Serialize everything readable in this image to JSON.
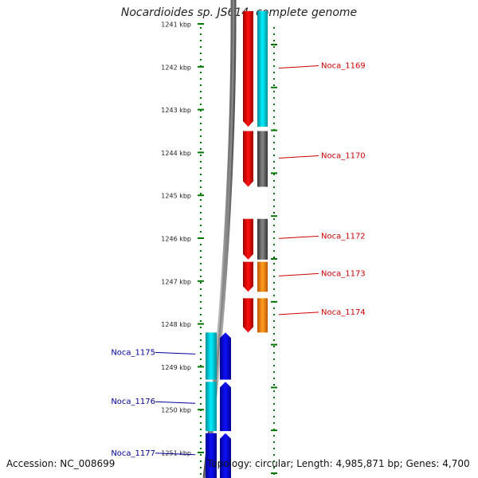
{
  "title": "Nocardioides sp. JS614, complete genome",
  "footer": {
    "accession": "Accession: NC_008699",
    "summary": "Topology: circular; Length: 4,985,871 bp; Genes: 4,700"
  },
  "colors": {
    "forward_cds": "#ff0000",
    "reverse_cds": "#0000ff",
    "cyan_class": "#00e0f0",
    "gray_class": "#606060",
    "orange_class": "#ff8c00",
    "tick": "#007700",
    "label_fwd": "#cc0000",
    "label_rev": "#000099"
  },
  "ruler": {
    "labels": [
      "1241 kbp",
      "1242 kbp",
      "1243 kbp",
      "1244 kbp",
      "1245 kbp",
      "1246 kbp",
      "1247 kbp",
      "1248 kbp",
      "1249 kbp",
      "1250 kbp",
      "1251 kbp"
    ],
    "start_kbp": 1241,
    "step_kbp": 1
  },
  "genes": [
    {
      "label": "Noca_1169",
      "strand": "+",
      "class_color": "cyan_class",
      "start_kbp": 1240.7,
      "end_kbp": 1243.4
    },
    {
      "label": "Noca_1170",
      "strand": "+",
      "class_color": "gray_class",
      "start_kbp": 1243.5,
      "end_kbp": 1244.8
    },
    {
      "label": "Noca_1172",
      "strand": "+",
      "class_color": "gray_class",
      "start_kbp": 1245.55,
      "end_kbp": 1246.5
    },
    {
      "label": "Noca_1173",
      "strand": "+",
      "class_color": "orange_class",
      "start_kbp": 1246.55,
      "end_kbp": 1247.25
    },
    {
      "label": "Noca_1174",
      "strand": "+",
      "class_color": "orange_class",
      "start_kbp": 1247.4,
      "end_kbp": 1248.2
    },
    {
      "label": "Noca_1175",
      "strand": "-",
      "class_color": "cyan_class",
      "start_kbp": 1248.2,
      "end_kbp": 1249.3
    },
    {
      "label": "Noca_1176",
      "strand": "-",
      "class_color": "cyan_class",
      "start_kbp": 1249.35,
      "end_kbp": 1250.5
    },
    {
      "label": "Noca_1177",
      "strand": "-",
      "class_color": "reverse_cds",
      "start_kbp": 1250.55,
      "end_kbp": 1251.6
    }
  ]
}
